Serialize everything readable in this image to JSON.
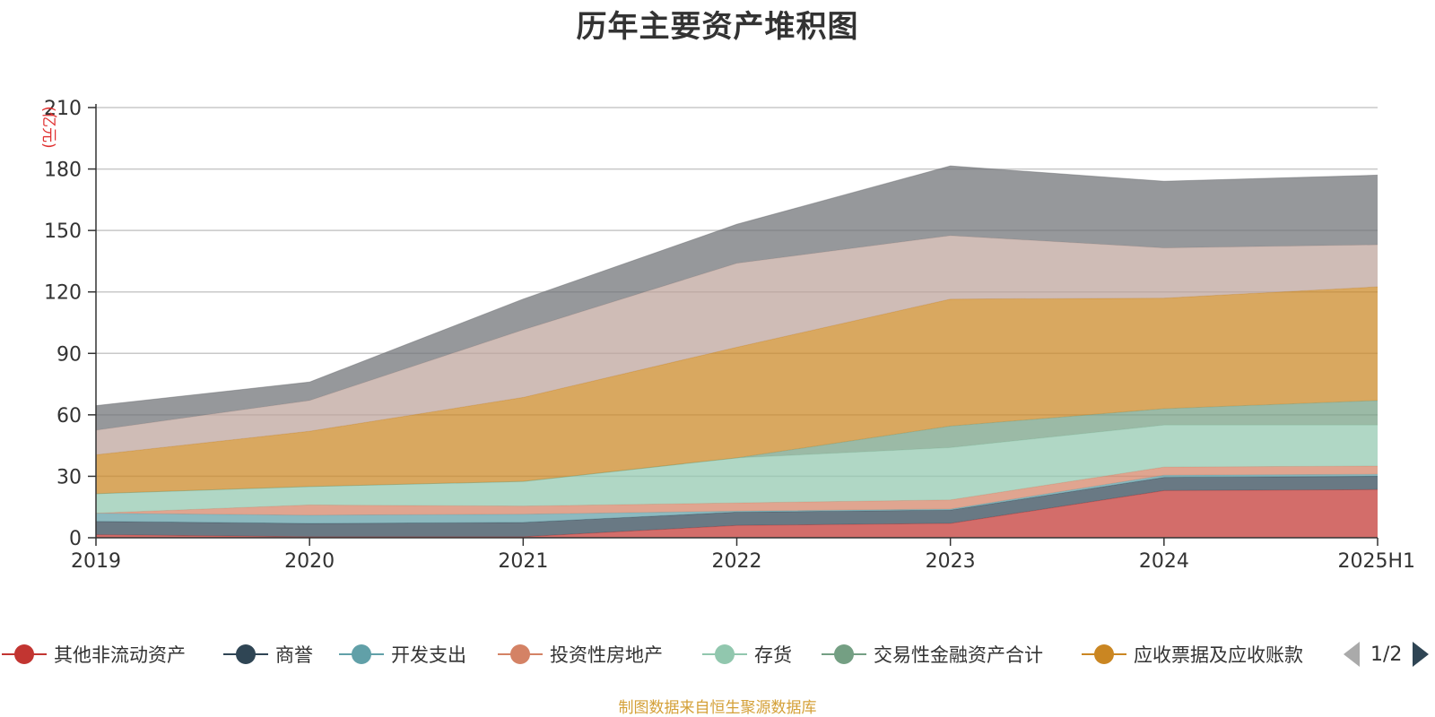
{
  "chart_data": {
    "type": "area",
    "stacked": true,
    "title": "历年主要资产堆积图",
    "ylabel": "(亿元)",
    "xlabel": "",
    "categories": [
      "2019",
      "2020",
      "2021",
      "2022",
      "2023",
      "2024",
      "2025H1"
    ],
    "ylim": [
      0,
      210
    ],
    "yticks": [
      0,
      30,
      60,
      90,
      120,
      150,
      180,
      210
    ],
    "grid": true,
    "legend_position": "bottom",
    "series": [
      {
        "name": "其他非流动资产",
        "color": "#c23531",
        "values": [
          1.5,
          0.5,
          0.5,
          6,
          7,
          23,
          23.5
        ]
      },
      {
        "name": "商誉",
        "color": "#2f4554",
        "values": [
          6.5,
          6.5,
          7,
          6.5,
          6.5,
          6.5,
          6.5
        ]
      },
      {
        "name": "开发支出",
        "color": "#61a0a8",
        "values": [
          4,
          4,
          4,
          0.5,
          0.5,
          1,
          1
        ]
      },
      {
        "name": "投资性房地产",
        "color": "#d48265",
        "values": [
          0,
          5,
          4,
          4,
          4.5,
          4,
          4
        ]
      },
      {
        "name": "存货",
        "color": "#91c7ae",
        "values": [
          9.5,
          9,
          12,
          22,
          25.5,
          20.5,
          20
        ]
      },
      {
        "name": "交易性金融资产合计",
        "color": "#749f83",
        "values": [
          0,
          0,
          0,
          0,
          10.5,
          8,
          12
        ]
      },
      {
        "name": "应收票据及应收账款",
        "color": "#ca8622",
        "values": [
          19,
          27,
          41,
          54,
          62,
          54,
          55.5
        ]
      },
      {
        "name": "",
        "color": "#bda29a",
        "values": [
          12,
          15,
          33,
          41,
          31,
          24.5,
          20.5
        ]
      },
      {
        "name": "",
        "color": "#6e7074",
        "values": [
          12,
          9,
          15,
          19,
          34,
          32.5,
          34
        ]
      }
    ]
  },
  "legend_items": [
    "其他非流动资产",
    "商誉",
    "开发支出",
    "投资性房地产",
    "存货",
    "交易性金融资产合计",
    "应收票据及应收账款"
  ],
  "legend_colors": [
    "#c23531",
    "#2f4554",
    "#61a0a8",
    "#d48265",
    "#91c7ae",
    "#749f83",
    "#ca8622"
  ],
  "pager": {
    "text": "1/2"
  },
  "source_note": "制图数据来自恒生聚源数据库"
}
